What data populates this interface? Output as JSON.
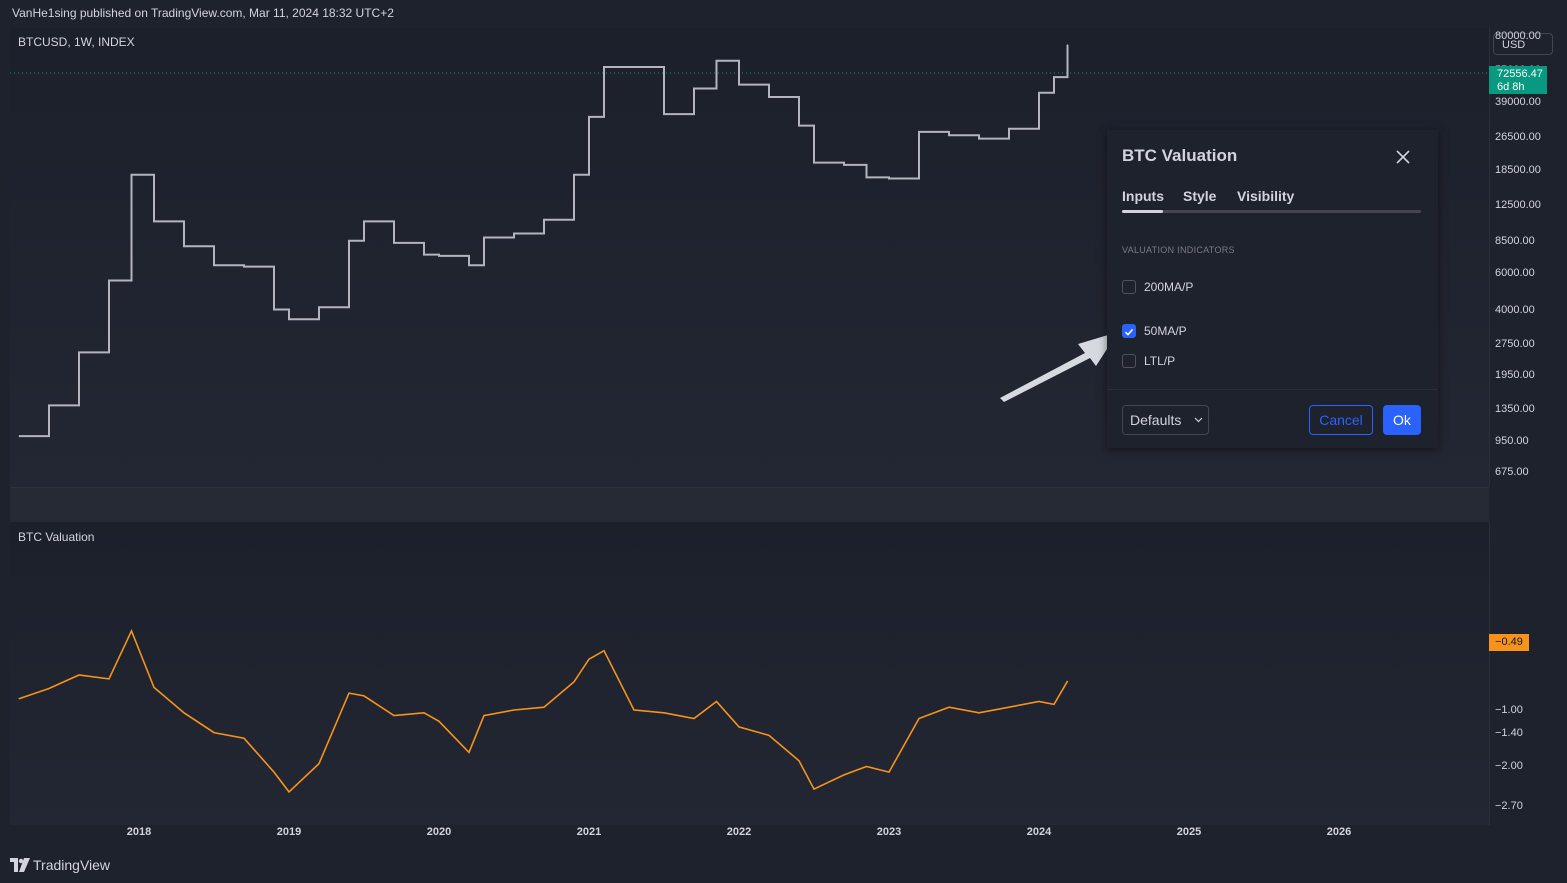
{
  "header": {
    "published": "VanHe1sing published on TradingView.com, Mar 11, 2024 18:32 UTC+2"
  },
  "price_pane": {
    "symbol_label": "BTCUSD, 1W, INDEX",
    "currency": "USD",
    "last_price": "72556.47",
    "countdown": "6d 8h",
    "axis_ticks": [
      "80000.00",
      "55000.00",
      "39000.00",
      "26500.00",
      "18500.00",
      "12500.00",
      "8500.00",
      "6000.00",
      "4000.00",
      "2750.00",
      "1950.00",
      "1350.00",
      "950.00",
      "675.00"
    ]
  },
  "valuation_pane": {
    "label": "BTC Valuation",
    "last_value": "−0.49",
    "axis_ticks": [
      "−1.00",
      "−1.40",
      "−2.00",
      "−2.70"
    ]
  },
  "time_axis": {
    "years": [
      "2018",
      "2019",
      "2020",
      "2021",
      "2022",
      "2023",
      "2024",
      "2025",
      "2026"
    ]
  },
  "dialog": {
    "title": "BTC Valuation",
    "tabs": [
      {
        "label": "Inputs",
        "active": true
      },
      {
        "label": "Style",
        "active": false
      },
      {
        "label": "Visibility",
        "active": false
      }
    ],
    "section_title": "VALUATION INDICATORS",
    "options": [
      {
        "label": "200MA/P",
        "checked": false
      },
      {
        "label": "50MA/P",
        "checked": true
      },
      {
        "label": "LTL/P",
        "checked": false
      }
    ],
    "defaults_label": "Defaults",
    "cancel_label": "Cancel",
    "ok_label": "Ok"
  },
  "footer": {
    "brand": "TradingView"
  },
  "colors": {
    "price_line": "#b2b5be",
    "valuation_line": "#f7931a",
    "accent": "#2962ff",
    "up": "#089981"
  },
  "chart_data": [
    {
      "type": "line",
      "title": "BTCUSD, 1W, INDEX",
      "scale": "log",
      "x": [
        2017.2,
        2017.4,
        2017.6,
        2017.8,
        2017.95,
        2018.1,
        2018.3,
        2018.5,
        2018.7,
        2018.9,
        2019.0,
        2019.2,
        2019.4,
        2019.5,
        2019.7,
        2019.9,
        2020.0,
        2020.2,
        2020.3,
        2020.5,
        2020.7,
        2020.9,
        2021.0,
        2021.1,
        2021.3,
        2021.5,
        2021.7,
        2021.85,
        2022.0,
        2022.2,
        2022.4,
        2022.5,
        2022.7,
        2022.85,
        2023.0,
        2023.2,
        2023.4,
        2023.6,
        2023.8,
        2024.0,
        2024.1,
        2024.19
      ],
      "values": [
        1000,
        1400,
        2500,
        5500,
        17500,
        10500,
        8000,
        6500,
        6400,
        4000,
        3600,
        4100,
        8500,
        10500,
        8300,
        7300,
        7200,
        6500,
        8800,
        9200,
        10700,
        17500,
        33000,
        57000,
        57000,
        34000,
        45000,
        61000,
        47000,
        41000,
        30000,
        20000,
        19500,
        17000,
        16800,
        28000,
        27000,
        26000,
        29000,
        43000,
        51000,
        72556
      ]
    },
    {
      "type": "line",
      "title": "BTC Valuation",
      "x": [
        2017.2,
        2017.4,
        2017.6,
        2017.8,
        2017.95,
        2018.1,
        2018.3,
        2018.5,
        2018.7,
        2018.9,
        2019.0,
        2019.2,
        2019.4,
        2019.5,
        2019.7,
        2019.9,
        2020.0,
        2020.2,
        2020.3,
        2020.5,
        2020.7,
        2020.9,
        2021.0,
        2021.1,
        2021.3,
        2021.5,
        2021.7,
        2021.85,
        2022.0,
        2022.2,
        2022.4,
        2022.5,
        2022.7,
        2022.85,
        2023.0,
        2023.2,
        2023.4,
        2023.6,
        2023.8,
        2024.0,
        2024.1,
        2024.19
      ],
      "values": [
        -0.8,
        -0.62,
        -0.38,
        -0.45,
        0.4,
        -0.6,
        -1.05,
        -1.4,
        -1.5,
        -2.1,
        -2.45,
        -1.95,
        -0.7,
        -0.75,
        -1.1,
        -1.05,
        -1.2,
        -1.75,
        -1.1,
        -1.0,
        -0.95,
        -0.5,
        -0.1,
        0.05,
        -1.0,
        -1.05,
        -1.15,
        -0.85,
        -1.3,
        -1.45,
        -1.9,
        -2.4,
        -2.15,
        -2.0,
        -2.1,
        -1.15,
        -0.95,
        -1.05,
        -0.95,
        -0.85,
        -0.9,
        -0.49
      ],
      "ylim": [
        -2.7,
        0.4
      ]
    }
  ]
}
